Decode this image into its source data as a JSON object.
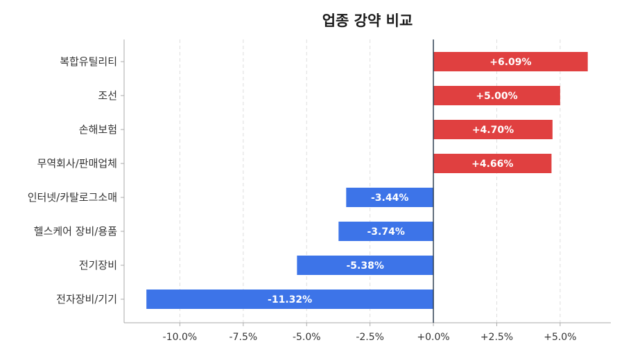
{
  "chart_data": {
    "type": "bar",
    "orientation": "horizontal",
    "title": "업종 강약 비교",
    "xlabel": "",
    "ylabel": "",
    "xlim": [
      -12.2,
      7.0
    ],
    "xticks": [
      -10,
      -7.5,
      -5,
      -2.5,
      0,
      2.5,
      5
    ],
    "xtick_labels": [
      "-10.0%",
      "-7.5%",
      "-5.0%",
      "-2.5%",
      "+0.0%",
      "+2.5%",
      "+5.0%"
    ],
    "grid": "vertical-dashed",
    "categories": [
      "복합유틸리티",
      "조선",
      "손해보험",
      "무역회사/판매업체",
      "인터넷/카탈로그소매",
      "헬스케어 장비/용품",
      "전기장비",
      "전자장비/기기"
    ],
    "values": [
      6.09,
      5.0,
      4.7,
      4.66,
      -3.44,
      -3.74,
      -5.38,
      -11.32
    ],
    "value_labels": [
      "+6.09%",
      "+5.00%",
      "+4.70%",
      "+4.66%",
      "-3.44%",
      "-3.74%",
      "-5.38%",
      "-11.32%"
    ],
    "colors": {
      "positive": "#e04040",
      "negative": "#3d74e8"
    }
  }
}
